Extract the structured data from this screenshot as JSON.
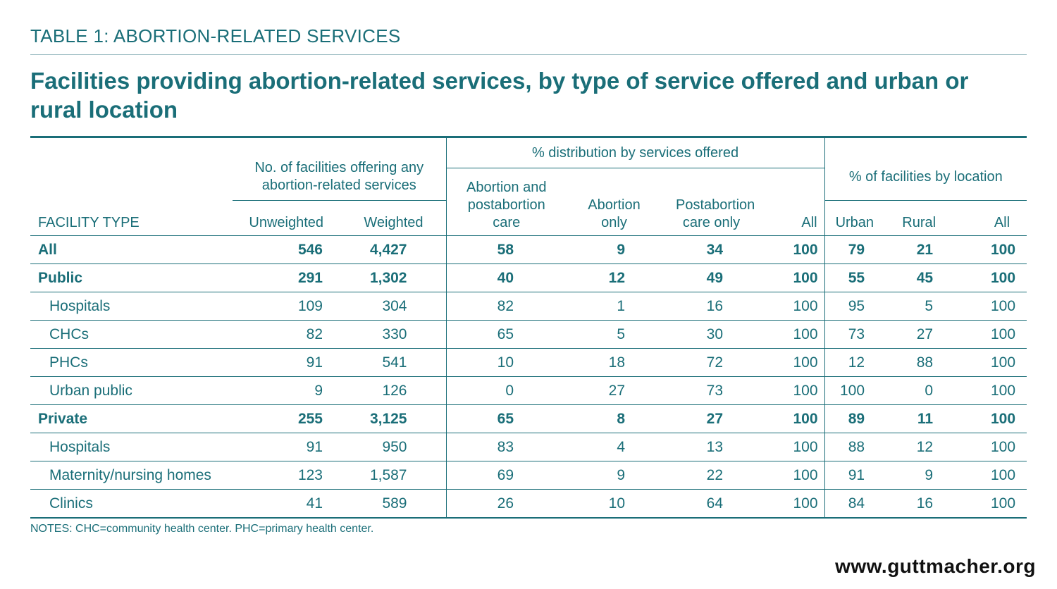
{
  "kicker": "TABLE 1: ABORTION-RELATED SERVICES",
  "title": "Facilities providing abortion-related services, by type of service offered and urban or rural location",
  "colors": {
    "accent": "#1a6e78",
    "rule": "#9fbfc4",
    "site_text": "#111111"
  },
  "chart_data": {
    "type": "table",
    "title": "Facilities providing abortion-related services, by type of service offered and urban or rural location",
    "group_headers": {
      "facilities": "No. of facilities offering any abortion-related services",
      "services": "% distribution by services offered",
      "location": "% of facilities by location"
    },
    "columns": {
      "type": "FACILITY TYPE",
      "unweighted": "Unweighted",
      "weighted": "Weighted",
      "abortion_postabortion": "Abortion and postabortion care",
      "abortion_only": "Abortion only",
      "postabortion_only": "Postabortion care only",
      "all_services": "All",
      "urban": "Urban",
      "rural": "Rural",
      "all_location": "All"
    },
    "rows": [
      {
        "label": "All",
        "bold": true,
        "sub": false,
        "values": [
          "546",
          "4,427",
          "58",
          "9",
          "34",
          "100",
          "79",
          "21",
          "100"
        ]
      },
      {
        "label": "Public",
        "bold": true,
        "sub": false,
        "values": [
          "291",
          "1,302",
          "40",
          "12",
          "49",
          "100",
          "55",
          "45",
          "100"
        ]
      },
      {
        "label": "Hospitals",
        "bold": false,
        "sub": true,
        "values": [
          "109",
          "304",
          "82",
          "1",
          "16",
          "100",
          "95",
          "5",
          "100"
        ]
      },
      {
        "label": "CHCs",
        "bold": false,
        "sub": true,
        "values": [
          "82",
          "330",
          "65",
          "5",
          "30",
          "100",
          "73",
          "27",
          "100"
        ]
      },
      {
        "label": "PHCs",
        "bold": false,
        "sub": true,
        "values": [
          "91",
          "541",
          "10",
          "18",
          "72",
          "100",
          "12",
          "88",
          "100"
        ]
      },
      {
        "label": "Urban public",
        "bold": false,
        "sub": true,
        "values": [
          "9",
          "126",
          "0",
          "27",
          "73",
          "100",
          "100",
          "0",
          "100"
        ]
      },
      {
        "label": "Private",
        "bold": true,
        "sub": false,
        "values": [
          "255",
          "3,125",
          "65",
          "8",
          "27",
          "100",
          "89",
          "11",
          "100"
        ]
      },
      {
        "label": "Hospitals",
        "bold": false,
        "sub": true,
        "values": [
          "91",
          "950",
          "83",
          "4",
          "13",
          "100",
          "88",
          "12",
          "100"
        ]
      },
      {
        "label": "Maternity/nursing homes",
        "bold": false,
        "sub": true,
        "values": [
          "123",
          "1,587",
          "69",
          "9",
          "22",
          "100",
          "91",
          "9",
          "100"
        ]
      },
      {
        "label": "Clinics",
        "bold": false,
        "sub": true,
        "values": [
          "41",
          "589",
          "26",
          "10",
          "64",
          "100",
          "84",
          "16",
          "100"
        ]
      }
    ]
  },
  "notes": "NOTES: CHC=community health center. PHC=primary health center.",
  "site": "www.guttmacher.org"
}
